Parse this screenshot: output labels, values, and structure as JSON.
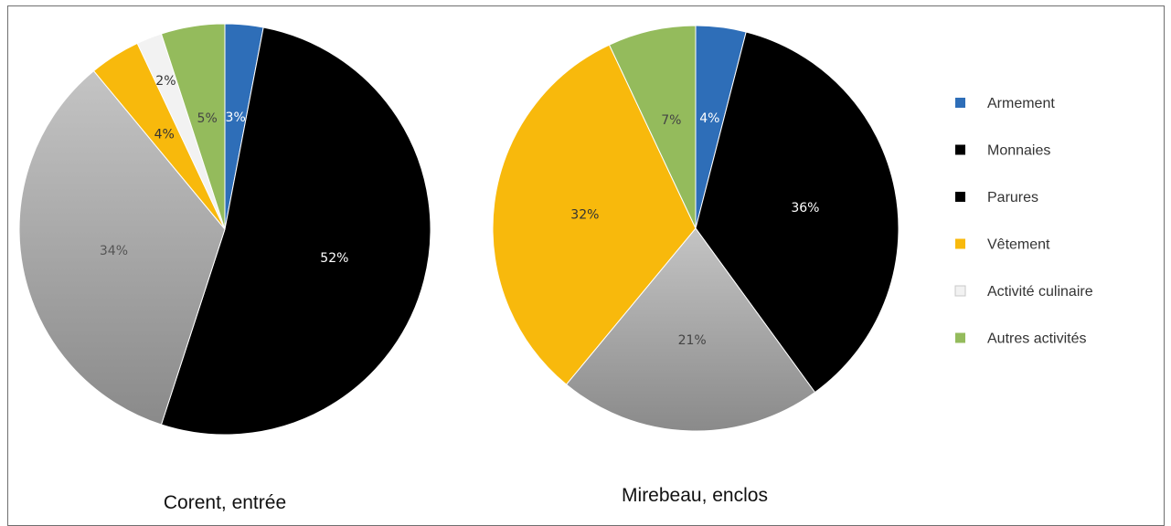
{
  "legend": [
    {
      "name": "Armement",
      "color": "#2e6eb8"
    },
    {
      "name": "Monnaies",
      "color": "#000000"
    },
    {
      "name": "Parures",
      "color": "#000000"
    },
    {
      "name": "Vêtement",
      "color": "#f8b90c"
    },
    {
      "name": "Activité culinaire",
      "color": "#f2f2f2"
    },
    {
      "name": "Autres activités",
      "color": "#94bb5c"
    }
  ],
  "legend_placement": "right",
  "chart_data": [
    {
      "type": "pie",
      "title": "Corent, entrée",
      "slices": [
        {
          "name": "Armement",
          "value": 3,
          "label": "3%",
          "color": "#2e6eb8",
          "label_color": "#ffffff"
        },
        {
          "name": "Monnaies",
          "value": 52,
          "label": "52%",
          "color": "#000000",
          "label_color": "#ffffff"
        },
        {
          "name": "Parures",
          "value": 34,
          "label": "34%",
          "color": "#a6a6a6",
          "label_color": "#555555"
        },
        {
          "name": "Vêtement",
          "value": 4,
          "label": "4%",
          "color": "#f8b90c",
          "label_color": "#333333"
        },
        {
          "name": "Activité culinaire",
          "value": 2,
          "label": "2%",
          "color": "#f2f2f2",
          "label_color": "#333333"
        },
        {
          "name": "Autres activités",
          "value": 5,
          "label": "5%",
          "color": "#94bb5c",
          "label_color": "#444444"
        }
      ]
    },
    {
      "type": "pie",
      "title": "Mirebeau, enclos",
      "slices": [
        {
          "name": "Armement",
          "value": 4,
          "label": "4%",
          "color": "#2e6eb8",
          "label_color": "#ffffff"
        },
        {
          "name": "Monnaies",
          "value": 36,
          "label": "36%",
          "color": "#000000",
          "label_color": "#ffffff"
        },
        {
          "name": "Parures",
          "value": 21,
          "label": "21%",
          "color": "#a6a6a6",
          "label_color": "#444444"
        },
        {
          "name": "Vêtement",
          "value": 32,
          "label": "32%",
          "color": "#f8b90c",
          "label_color": "#333333"
        },
        {
          "name": "Autres activités",
          "value": 7,
          "label": "7%",
          "color": "#94bb5c",
          "label_color": "#444444"
        }
      ]
    }
  ]
}
